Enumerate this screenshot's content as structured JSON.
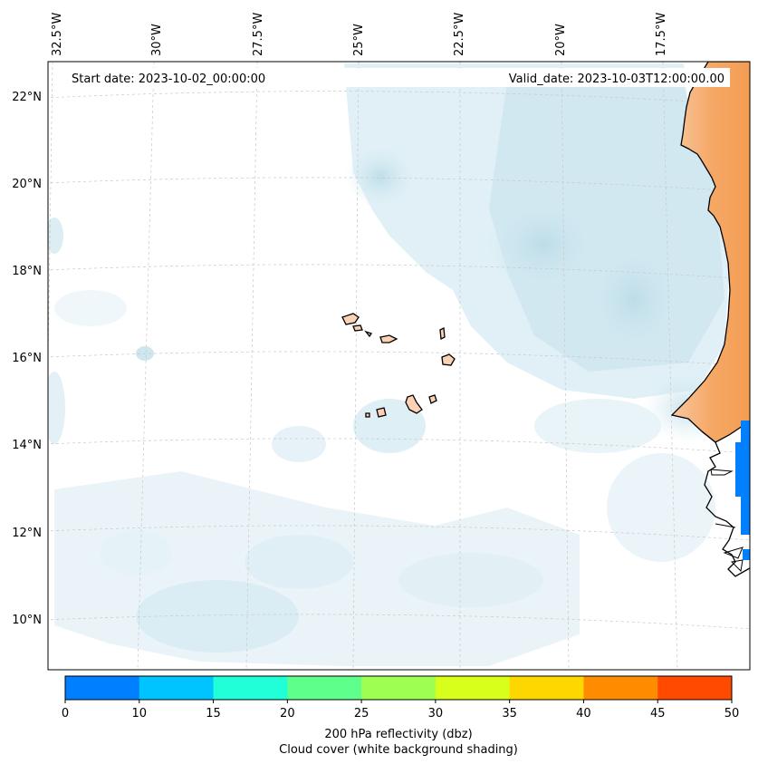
{
  "map": {
    "start_date": "Start date: 2023-10-02_00:00:00",
    "valid_date": "Valid_date: 2023-10-03T12:00:00.00",
    "lon_labels": [
      "32.5°W",
      "30°W",
      "27.5°W",
      "25°W",
      "22.5°W",
      "20°W",
      "17.5°W"
    ],
    "lat_labels": [
      "22°N",
      "20°N",
      "18°N",
      "16°N",
      "14°N",
      "12°N",
      "10°N"
    ],
    "land_color": "#f5a25b",
    "island_color": "#fbd2b4",
    "cloud_color": "#cfe6ef"
  },
  "colorbar": {
    "ticks": [
      "0",
      "10",
      "15",
      "20",
      "25",
      "30",
      "35",
      "40",
      "45",
      "50"
    ],
    "colors": [
      "#0080ff",
      "#00c4ff",
      "#20ffd8",
      "#5fff8c",
      "#9eff52",
      "#d8ff1c",
      "#ffd700",
      "#ff8c00",
      "#ff4a00"
    ],
    "label_line1": "200 hPa reflectivity (dbz)",
    "label_line2": "Cloud cover (white background shading)"
  }
}
